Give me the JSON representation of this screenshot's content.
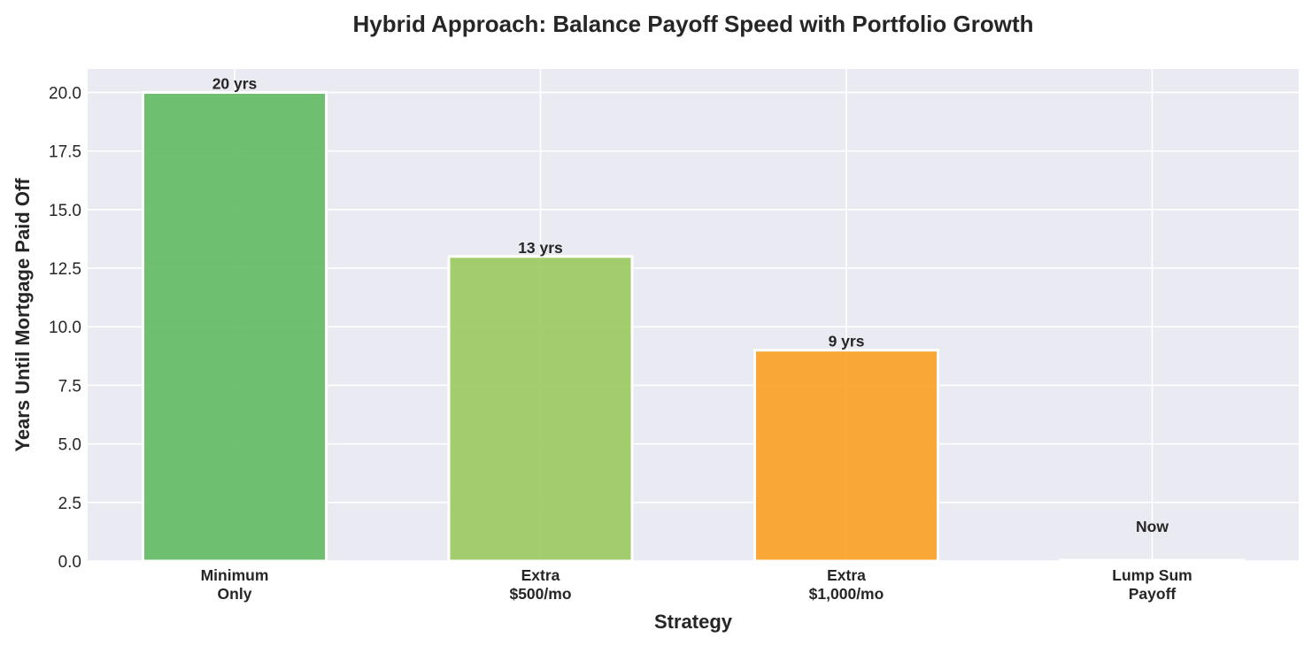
{
  "chart_data": {
    "type": "bar",
    "title": "Hybrid Approach: Balance Payoff Speed with Portfolio Growth",
    "xlabel": "Strategy",
    "ylabel": "Years Until Mortgage Paid Off",
    "categories": [
      [
        "Minimum",
        "Only"
      ],
      [
        "Extra",
        "$500/mo"
      ],
      [
        "Extra",
        "$1,000/mo"
      ],
      [
        "Lump Sum",
        "Payoff"
      ]
    ],
    "values": [
      20,
      13,
      9,
      0
    ],
    "data_labels": [
      "20 yrs",
      "13 yrs",
      "9 yrs",
      "Now"
    ],
    "colors": [
      "#5cb85c",
      "#96c85a",
      "#fa9e1c",
      "#e0e0ee"
    ],
    "ylim": [
      0,
      21
    ],
    "yticks": [
      "0.0",
      "2.5",
      "5.0",
      "7.5",
      "10.0",
      "12.5",
      "15.0",
      "17.5",
      "20.0"
    ],
    "ytick_values": [
      0,
      2.5,
      5,
      7.5,
      10,
      12.5,
      15,
      17.5,
      20
    ],
    "grid": true,
    "background": "#eaeaf2",
    "legend": "none"
  }
}
